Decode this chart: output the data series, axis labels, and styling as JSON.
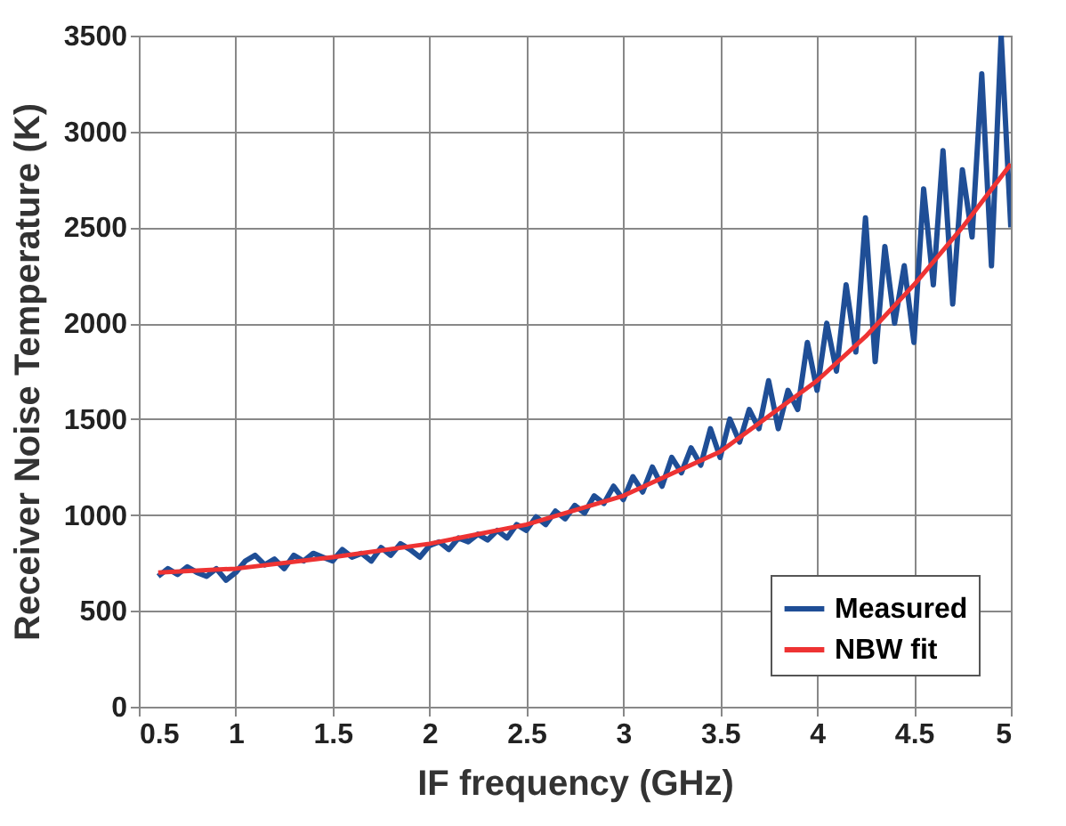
{
  "chart_data": {
    "type": "line",
    "xlabel": "IF frequency (GHz)",
    "ylabel": "Receiver Noise Temperature (K)",
    "xlim": [
      0.5,
      5
    ],
    "xticks": [
      0.5,
      1,
      1.5,
      2,
      2.5,
      3,
      3.5,
      4,
      4.5,
      5
    ],
    "ylim": [
      0,
      3500
    ],
    "yticks": [
      0,
      500,
      1000,
      1500,
      2000,
      2500,
      3000,
      3500
    ],
    "grid": true,
    "legend": "bottom right",
    "line_style": "solid",
    "series": [
      {
        "name": "Measured",
        "color": "#1f4e96",
        "x": [
          0.6,
          0.65,
          0.7,
          0.75,
          0.8,
          0.85,
          0.9,
          0.95,
          1.0,
          1.05,
          1.1,
          1.15,
          1.2,
          1.25,
          1.3,
          1.35,
          1.4,
          1.45,
          1.5,
          1.55,
          1.6,
          1.65,
          1.7,
          1.75,
          1.8,
          1.85,
          1.9,
          1.95,
          2.0,
          2.05,
          2.1,
          2.15,
          2.2,
          2.25,
          2.3,
          2.35,
          2.4,
          2.45,
          2.5,
          2.55,
          2.6,
          2.65,
          2.7,
          2.75,
          2.8,
          2.85,
          2.9,
          2.95,
          3.0,
          3.05,
          3.1,
          3.15,
          3.2,
          3.25,
          3.3,
          3.35,
          3.4,
          3.45,
          3.5,
          3.55,
          3.6,
          3.65,
          3.7,
          3.75,
          3.8,
          3.85,
          3.9,
          3.95,
          4.0,
          4.05,
          4.1,
          4.15,
          4.2,
          4.25,
          4.3,
          4.35,
          4.4,
          4.45,
          4.5,
          4.55,
          4.6,
          4.65,
          4.7,
          4.75,
          4.8,
          4.85,
          4.9,
          4.95,
          5.0
        ],
        "values": [
          680,
          720,
          690,
          730,
          700,
          680,
          720,
          660,
          700,
          760,
          790,
          740,
          770,
          720,
          790,
          760,
          800,
          780,
          760,
          820,
          780,
          800,
          760,
          830,
          790,
          850,
          820,
          780,
          840,
          860,
          820,
          880,
          860,
          900,
          870,
          920,
          880,
          950,
          920,
          990,
          950,
          1020,
          980,
          1050,
          1010,
          1100,
          1060,
          1150,
          1080,
          1200,
          1120,
          1250,
          1150,
          1300,
          1220,
          1350,
          1260,
          1450,
          1300,
          1500,
          1380,
          1550,
          1450,
          1700,
          1450,
          1650,
          1550,
          1900,
          1650,
          2000,
          1750,
          2200,
          1850,
          2550,
          1800,
          2400,
          2000,
          2300,
          1900,
          2700,
          2200,
          2900,
          2100,
          2800,
          2450,
          3300,
          2300,
          3500,
          2500
        ]
      },
      {
        "name": "NBW fit",
        "color": "#ee3333",
        "x": [
          0.6,
          1,
          1.5,
          2,
          2.5,
          3,
          3.5,
          4,
          4.25,
          4.5,
          4.75,
          5
        ],
        "values": [
          700,
          720,
          780,
          850,
          950,
          1100,
          1330,
          1700,
          1930,
          2200,
          2500,
          2830
        ]
      }
    ]
  }
}
